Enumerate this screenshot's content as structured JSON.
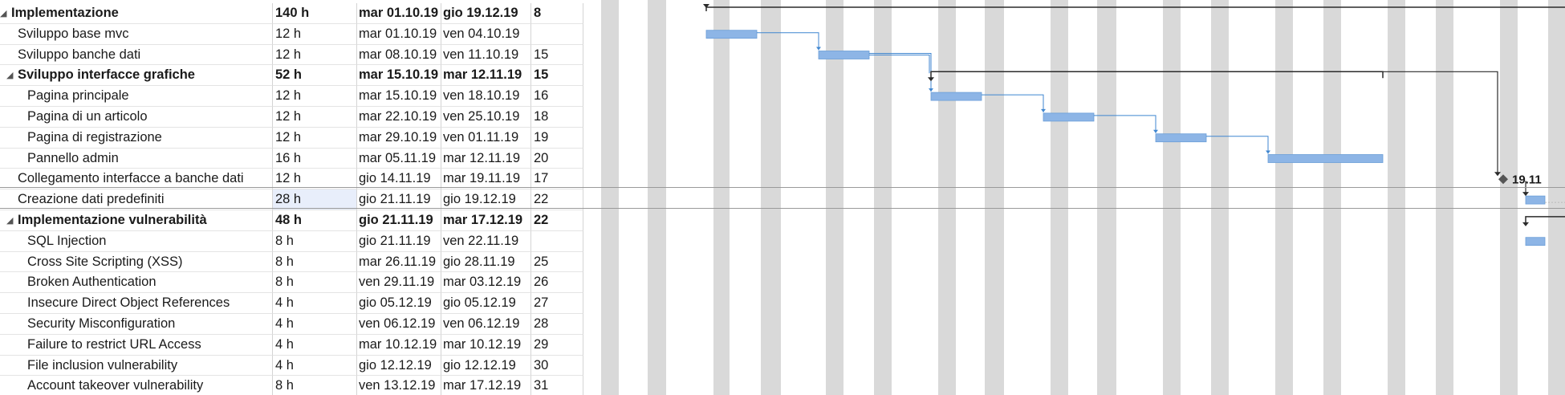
{
  "table": {
    "rows": [
      {
        "name": "Implementazione",
        "duration": "140 h",
        "start": "mar 01.10.19",
        "end": "gio 19.12.19",
        "pred": "8",
        "level": 0,
        "summary": true,
        "bold": true
      },
      {
        "name": "Sviluppo base mvc",
        "duration": "12 h",
        "start": "mar 01.10.19",
        "end": "ven 04.10.19",
        "pred": "",
        "level": 1,
        "summary": false,
        "bold": false
      },
      {
        "name": "Sviluppo banche dati",
        "duration": "12 h",
        "start": "mar 08.10.19",
        "end": "ven 11.10.19",
        "pred": "15",
        "level": 1,
        "summary": false,
        "bold": false
      },
      {
        "name": "Sviluppo interfacce grafiche",
        "duration": "52 h",
        "start": "mar 15.10.19",
        "end": "mar 12.11.19",
        "pred": "15",
        "level": 1,
        "summary": true,
        "bold": true
      },
      {
        "name": "Pagina principale",
        "duration": "12 h",
        "start": "mar 15.10.19",
        "end": "ven 18.10.19",
        "pred": "16",
        "level": 2,
        "summary": false,
        "bold": false
      },
      {
        "name": "Pagina di un articolo",
        "duration": "12 h",
        "start": "mar 22.10.19",
        "end": "ven 25.10.19",
        "pred": "18",
        "level": 2,
        "summary": false,
        "bold": false
      },
      {
        "name": "Pagina di registrazione",
        "duration": "12 h",
        "start": "mar 29.10.19",
        "end": "ven 01.11.19",
        "pred": "19",
        "level": 2,
        "summary": false,
        "bold": false
      },
      {
        "name": "Pannello admin",
        "duration": "16 h",
        "start": "mar 05.11.19",
        "end": "mar 12.11.19",
        "pred": "20",
        "level": 2,
        "summary": false,
        "bold": false
      },
      {
        "name": "Collegamento interfacce a banche dati",
        "duration": "12 h",
        "start": "gio 14.11.19",
        "end": "mar 19.11.19",
        "pred": "17",
        "level": 1,
        "summary": false,
        "bold": false
      },
      {
        "name": "Creazione dati predefiniti",
        "duration": "28 h",
        "start": "gio 21.11.19",
        "end": "gio 19.12.19",
        "pred": "22",
        "level": 1,
        "summary": false,
        "bold": false,
        "selected": true
      },
      {
        "name": "Implementazione vulnerabilità",
        "duration": "48 h",
        "start": "gio 21.11.19",
        "end": "mar 17.12.19",
        "pred": "22",
        "level": 1,
        "summary": true,
        "bold": true
      },
      {
        "name": "SQL Injection",
        "duration": "8 h",
        "start": "gio 21.11.19",
        "end": "ven 22.11.19",
        "pred": "",
        "level": 2,
        "summary": false,
        "bold": false
      },
      {
        "name": "Cross Site Scripting (XSS)",
        "duration": "8 h",
        "start": "mar 26.11.19",
        "end": "gio 28.11.19",
        "pred": "25",
        "level": 2,
        "summary": false,
        "bold": false
      },
      {
        "name": "Broken Authentication",
        "duration": "8 h",
        "start": "ven 29.11.19",
        "end": "mar 03.12.19",
        "pred": "26",
        "level": 2,
        "summary": false,
        "bold": false
      },
      {
        "name": "Insecure Direct Object References",
        "duration": "4 h",
        "start": "gio 05.12.19",
        "end": "gio 05.12.19",
        "pred": "27",
        "level": 2,
        "summary": false,
        "bold": false
      },
      {
        "name": "Security Misconfiguration",
        "duration": "4 h",
        "start": "ven 06.12.19",
        "end": "ven 06.12.19",
        "pred": "28",
        "level": 2,
        "summary": false,
        "bold": false
      },
      {
        "name": "Failure to restrict URL Access",
        "duration": "4 h",
        "start": "mar 10.12.19",
        "end": "mar 10.12.19",
        "pred": "29",
        "level": 2,
        "summary": false,
        "bold": false
      },
      {
        "name": "File inclusion vulnerability",
        "duration": "4 h",
        "start": "gio 12.12.19",
        "end": "gio 12.12.19",
        "pred": "30",
        "level": 2,
        "summary": false,
        "bold": false
      },
      {
        "name": "Account takeover vulnerability",
        "duration": "8 h",
        "start": "ven 13.12.19",
        "end": "mar 17.12.19",
        "pred": "31",
        "level": 2,
        "summary": false,
        "bold": false
      }
    ]
  },
  "gantt": {
    "milestone_label": "19.11",
    "colors": {
      "bar": "#8db5e6",
      "bar_border": "#6b9ed8",
      "weekend": "#d9d9d9",
      "link": "#3f86d0",
      "summary": "#2b2b2b"
    }
  }
}
